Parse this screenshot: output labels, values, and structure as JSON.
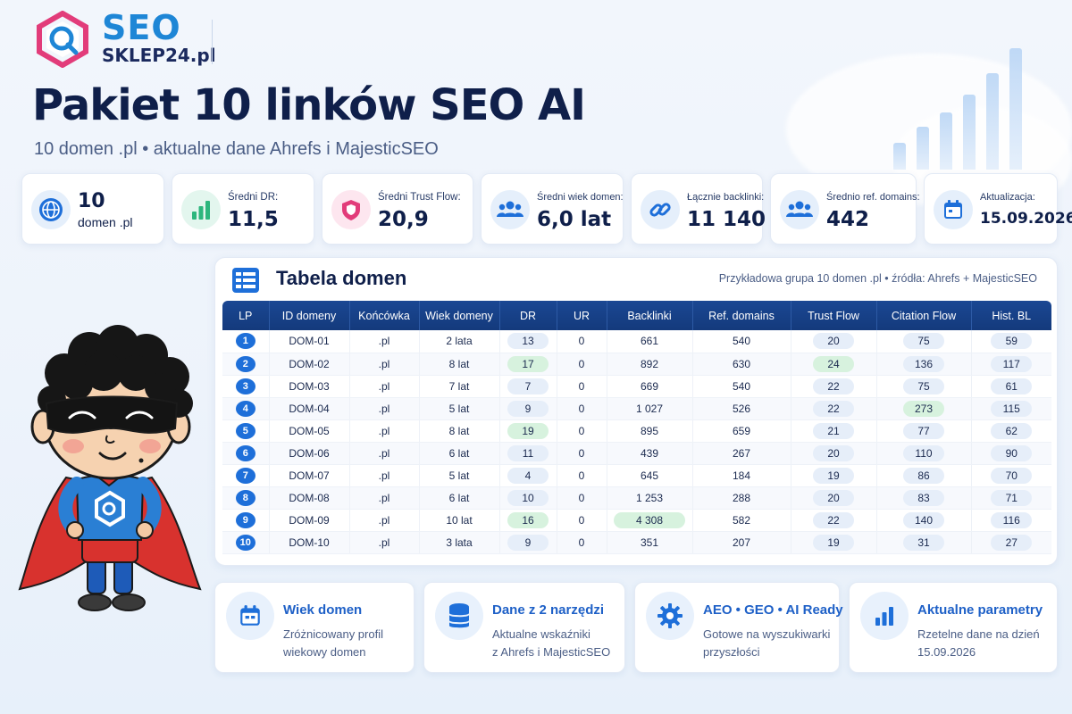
{
  "brand": {
    "name_top": "SEO",
    "name_bottom": "SKLEP24.pl"
  },
  "header": {
    "title": "Pakiet 10 linków SEO AI",
    "subtitle": "10 domen .pl • aktualne dane Ahrefs i MajesticSEO"
  },
  "stats": [
    {
      "icon": "globe-icon",
      "label": "",
      "value": "10",
      "sub": "domen .pl"
    },
    {
      "icon": "bar-chart-icon",
      "label": "Średni DR:",
      "value": "11,5"
    },
    {
      "icon": "shield-icon",
      "label": "Średni Trust Flow:",
      "value": "20,9"
    },
    {
      "icon": "users-icon",
      "label": "Średni wiek domen:",
      "value": "6,0 lat"
    },
    {
      "icon": "link-icon",
      "label": "Łącznie backlinki:",
      "value": "11 140"
    },
    {
      "icon": "users-icon",
      "label": "Średnio ref. domains:",
      "value": "442"
    },
    {
      "icon": "calendar-icon",
      "label": "Aktualizacja:",
      "value": "15.09.2026"
    }
  ],
  "table": {
    "title": "Tabela domen",
    "note": "Przykładowa grupa 10 domen .pl  •  źródła: Ahrefs + MajesticSEO",
    "columns": [
      "LP",
      "ID domeny",
      "Końcówka",
      "Wiek domeny",
      "DR",
      "UR",
      "Backlinki",
      "Ref. domains",
      "Trust Flow",
      "Citation Flow",
      "Hist. BL"
    ],
    "rows": [
      [
        "1",
        "DOM-01",
        ".pl",
        "2 lata",
        "13",
        "0",
        "661",
        "540",
        "20",
        "75",
        "59"
      ],
      [
        "2",
        "DOM-02",
        ".pl",
        "8 lat",
        "17",
        "0",
        "892",
        "630",
        "24",
        "136",
        "117"
      ],
      [
        "3",
        "DOM-03",
        ".pl",
        "7 lat",
        "7",
        "0",
        "669",
        "540",
        "22",
        "75",
        "61"
      ],
      [
        "4",
        "DOM-04",
        ".pl",
        "5 lat",
        "9",
        "0",
        "1 027",
        "526",
        "22",
        "273",
        "115"
      ],
      [
        "5",
        "DOM-05",
        ".pl",
        "8 lat",
        "19",
        "0",
        "895",
        "659",
        "21",
        "77",
        "62"
      ],
      [
        "6",
        "DOM-06",
        ".pl",
        "6 lat",
        "11",
        "0",
        "439",
        "267",
        "20",
        "110",
        "90"
      ],
      [
        "7",
        "DOM-07",
        ".pl",
        "5 lat",
        "4",
        "0",
        "645",
        "184",
        "19",
        "86",
        "70"
      ],
      [
        "8",
        "DOM-08",
        ".pl",
        "6 lat",
        "10",
        "0",
        "1 253",
        "288",
        "20",
        "83",
        "71"
      ],
      [
        "9",
        "DOM-09",
        ".pl",
        "10 lat",
        "16",
        "0",
        "4 308",
        "582",
        "22",
        "140",
        "116"
      ],
      [
        "10",
        "DOM-10",
        ".pl",
        "3 lata",
        "9",
        "0",
        "351",
        "207",
        "19",
        "31",
        "27"
      ]
    ],
    "highlights": [
      {
        "row": 1,
        "col": 4
      },
      {
        "row": 4,
        "col": 4
      },
      {
        "row": 8,
        "col": 4
      },
      {
        "row": 1,
        "col": 8
      },
      {
        "row": 3,
        "col": 9
      },
      {
        "row": 8,
        "col": 6
      }
    ],
    "highlight_color": "#d7f2de"
  },
  "features": [
    {
      "icon": "calendar-icon",
      "title": "Wiek domen",
      "desc": "Zróżnicowany profil\nwiekowy domen"
    },
    {
      "icon": "database-icon",
      "title": "Dane z 2 narzędzi",
      "desc": "Aktualne wskaźniki\nz Ahrefs i MajesticSEO"
    },
    {
      "icon": "gear-icon",
      "title": "AEO • GEO • AI Ready",
      "desc": "Gotowe na wyszukiwarki\nprzyszłości"
    },
    {
      "icon": "bar-chart-icon",
      "title": "Aktualne parametry",
      "desc": "Rzetelne dane na dzień\n15.09.2026"
    }
  ],
  "colors": {
    "navy": "#0f1f4a",
    "accent": "#1e6fd9",
    "header_row": "#143a7c",
    "pink": "#e23c7a",
    "green": "#2cb67d"
  }
}
